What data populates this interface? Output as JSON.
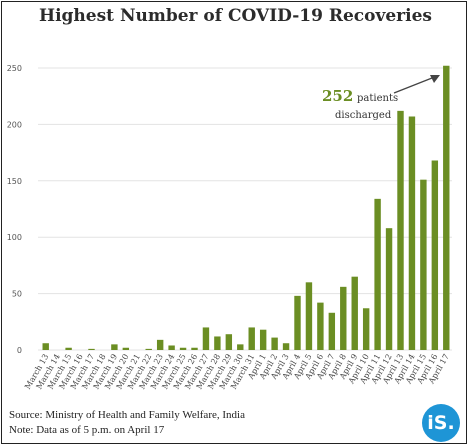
{
  "title": "Highest Number of COVID-19 Recoveries",
  "source_line": "Source: Ministry of Health and Family Welfare, India",
  "note_line": "Note: Data as of 5 p.m. on April 17",
  "logo_text": "iS.",
  "colors": {
    "bar": "#6b8e23",
    "accent": "#6b8e23",
    "grid": "#e3e3e3",
    "logo": "#1e95d6"
  },
  "annotation": {
    "number": "252",
    "text_line1": "patients",
    "text_line2": "discharged"
  },
  "chart_data": {
    "type": "bar",
    "title": "Highest Number of COVID-19 Recoveries",
    "xlabel": "",
    "ylabel": "",
    "ylim": [
      0,
      260
    ],
    "yticks": [
      0,
      50,
      100,
      150,
      200,
      250
    ],
    "grid": true,
    "categories": [
      "March 13",
      "March 14",
      "March 15",
      "March 16",
      "March 17",
      "March 18",
      "March 19",
      "March 20",
      "March 21",
      "March 22",
      "March 23",
      "March 24",
      "March 25",
      "March 26",
      "March 27",
      "March 28",
      "March 29",
      "March 30",
      "March 31",
      "April 1",
      "April 2",
      "April 3",
      "April 4",
      "April 5",
      "April 6",
      "April 7",
      "April 8",
      "April 9",
      "April 10",
      "April 11",
      "April 12",
      "April 13",
      "April 14",
      "April 15",
      "April 16",
      "April 17"
    ],
    "values": [
      6,
      0,
      2,
      0,
      1,
      0,
      5,
      2,
      0,
      1,
      9,
      4,
      2,
      2,
      20,
      12,
      14,
      5,
      20,
      18,
      11,
      6,
      48,
      60,
      42,
      33,
      56,
      65,
      37,
      134,
      108,
      212,
      207,
      151,
      168,
      252
    ]
  }
}
